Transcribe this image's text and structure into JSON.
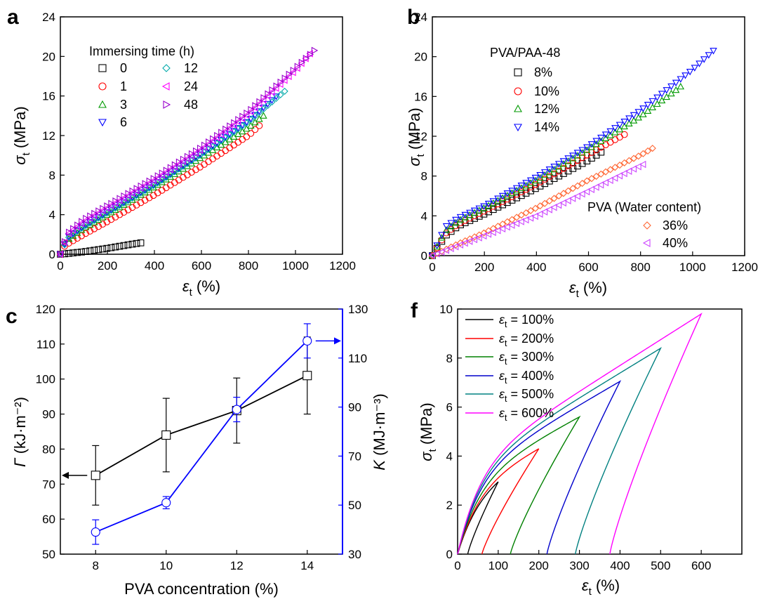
{
  "chart_data": [
    {
      "panel": "a",
      "type": "scatter",
      "xlabel": "ε_t (%)",
      "ylabel": "σ_t (MPa)",
      "xlim": [
        0,
        1200
      ],
      "ylim": [
        0,
        24
      ],
      "xticks": [
        0,
        200,
        400,
        600,
        800,
        1000,
        1200
      ],
      "yticks": [
        0,
        4,
        8,
        12,
        16,
        20,
        24
      ],
      "legend_title": "Immersing time (h)",
      "series": [
        {
          "name": "0",
          "marker": "square",
          "color": "#000000",
          "x_end": 355,
          "points": [
            [
              0,
              0
            ],
            [
              100,
              0.25
            ],
            [
              200,
              0.6
            ],
            [
              300,
              1.0
            ],
            [
              355,
              1.2
            ]
          ]
        },
        {
          "name": "1",
          "marker": "circle",
          "color": "#ff0000",
          "x_end": 860,
          "points": [
            [
              0,
              0
            ],
            [
              20,
              0.9
            ],
            [
              100,
              2.0
            ],
            [
              200,
              3.3
            ],
            [
              400,
              6.0
            ],
            [
              600,
              8.9
            ],
            [
              800,
              12.0
            ],
            [
              860,
              13.3
            ]
          ]
        },
        {
          "name": "3",
          "marker": "triangle-up",
          "color": "#009900",
          "x_end": 880,
          "points": [
            [
              0,
              0
            ],
            [
              20,
              1.3
            ],
            [
              100,
              2.6
            ],
            [
              200,
              4.0
            ],
            [
              400,
              6.8
            ],
            [
              600,
              9.8
            ],
            [
              800,
              12.8
            ],
            [
              880,
              14.3
            ]
          ]
        },
        {
          "name": "6",
          "marker": "triangle-down",
          "color": "#0000ff",
          "x_end": 920,
          "points": [
            [
              0,
              0
            ],
            [
              30,
              1.7
            ],
            [
              100,
              2.9
            ],
            [
              200,
              4.3
            ],
            [
              400,
              7.1
            ],
            [
              600,
              10.2
            ],
            [
              800,
              13.5
            ],
            [
              920,
              16.0
            ]
          ]
        },
        {
          "name": "12",
          "marker": "diamond",
          "color": "#00aaaa",
          "x_end": 960,
          "points": [
            [
              0,
              0
            ],
            [
              30,
              1.6
            ],
            [
              100,
              2.8
            ],
            [
              200,
              4.2
            ],
            [
              400,
              7.0
            ],
            [
              600,
              10.1
            ],
            [
              800,
              13.4
            ],
            [
              960,
              16.6
            ]
          ]
        },
        {
          "name": "24",
          "marker": "triangle-left",
          "color": "#ff00ff",
          "x_end": 1070,
          "points": [
            [
              0,
              0
            ],
            [
              30,
              2.0
            ],
            [
              100,
              3.3
            ],
            [
              200,
              4.7
            ],
            [
              400,
              7.5
            ],
            [
              600,
              10.6
            ],
            [
              800,
              14.2
            ],
            [
              1000,
              18.6
            ],
            [
              1070,
              20.5
            ]
          ]
        },
        {
          "name": "48",
          "marker": "triangle-right",
          "color": "#9900cc",
          "x_end": 1080,
          "points": [
            [
              0,
              0
            ],
            [
              30,
              2.1
            ],
            [
              100,
              3.5
            ],
            [
              200,
              4.9
            ],
            [
              400,
              7.7
            ],
            [
              600,
              10.8
            ],
            [
              800,
              14.4
            ],
            [
              1000,
              18.8
            ],
            [
              1080,
              20.6
            ]
          ]
        }
      ]
    },
    {
      "panel": "b",
      "type": "scatter",
      "xlabel": "ε_t (%)",
      "ylabel": "σ_t (MPa)",
      "xlim": [
        0,
        1200
      ],
      "ylim": [
        0,
        24
      ],
      "xticks": [
        0,
        200,
        400,
        600,
        800,
        1000,
        1200
      ],
      "yticks": [
        0,
        4,
        8,
        12,
        16,
        20,
        24
      ],
      "legend_title": "PVA/PAA-48",
      "legend_title_2": "PVA (Water content)",
      "series": [
        {
          "name": "8%",
          "marker": "square",
          "color": "#000000",
          "x_end": 660,
          "points": [
            [
              0,
              0
            ],
            [
              50,
              2.0
            ],
            [
              100,
              3.0
            ],
            [
              200,
              4.2
            ],
            [
              400,
              6.8
            ],
            [
              600,
              9.6
            ],
            [
              660,
              10.6
            ]
          ]
        },
        {
          "name": "10%",
          "marker": "circle",
          "color": "#ff0000",
          "x_end": 740,
          "points": [
            [
              0,
              0
            ],
            [
              50,
              2.2
            ],
            [
              100,
              3.2
            ],
            [
              200,
              4.5
            ],
            [
              400,
              7.2
            ],
            [
              600,
              10.2
            ],
            [
              740,
              12.2
            ]
          ]
        },
        {
          "name": "12%",
          "marker": "triangle-up",
          "color": "#009900",
          "x_end": 970,
          "points": [
            [
              0,
              0
            ],
            [
              50,
              2.5
            ],
            [
              100,
              3.5
            ],
            [
              200,
              4.8
            ],
            [
              400,
              7.6
            ],
            [
              600,
              10.7
            ],
            [
              800,
              14.0
            ],
            [
              970,
              17.3
            ]
          ]
        },
        {
          "name": "14%",
          "marker": "triangle-down",
          "color": "#0000ff",
          "x_end": 1080,
          "points": [
            [
              0,
              0
            ],
            [
              50,
              2.9
            ],
            [
              100,
              3.8
            ],
            [
              200,
              5.0
            ],
            [
              400,
              7.9
            ],
            [
              600,
              11.0
            ],
            [
              800,
              14.6
            ],
            [
              1000,
              18.7
            ],
            [
              1080,
              20.6
            ]
          ]
        },
        {
          "name": "36%",
          "marker": "diamond",
          "color": "#ff6633",
          "x_end": 860,
          "points": [
            [
              0,
              0
            ],
            [
              100,
              1.2
            ],
            [
              200,
              2.3
            ],
            [
              400,
              4.8
            ],
            [
              600,
              7.6
            ],
            [
              800,
              10.1
            ],
            [
              860,
              11.0
            ]
          ]
        },
        {
          "name": "40%",
          "marker": "triangle-left",
          "color": "#cc44ff",
          "x_end": 820,
          "points": [
            [
              0,
              0
            ],
            [
              100,
              1.0
            ],
            [
              200,
              2.0
            ],
            [
              400,
              4.0
            ],
            [
              600,
              6.5
            ],
            [
              820,
              9.3
            ]
          ]
        }
      ]
    },
    {
      "panel": "c",
      "type": "line",
      "xlabel": "PVA concentration  (%)",
      "ylabel": "Γ (kJ·m⁻²)",
      "y2label": "K (MJ·m⁻³)",
      "xlim": [
        7,
        15
      ],
      "ylim": [
        50,
        120
      ],
      "y2lim": [
        30,
        130
      ],
      "xticks": [
        8,
        10,
        12,
        14
      ],
      "yticks": [
        50,
        60,
        70,
        80,
        90,
        100,
        110,
        120
      ],
      "y2ticks": [
        30,
        50,
        70,
        90,
        110,
        130
      ],
      "series": [
        {
          "name": "Γ",
          "axis": "left",
          "marker": "square",
          "color": "#000000",
          "x": [
            8,
            10,
            12,
            14
          ],
          "values": [
            72.5,
            84,
            91,
            101
          ],
          "errors": [
            8.5,
            10.5,
            9.3,
            11
          ]
        },
        {
          "name": "K",
          "axis": "right",
          "marker": "circle",
          "color": "#0000ff",
          "x": [
            8,
            10,
            12,
            14
          ],
          "values": [
            39,
            51,
            89,
            117
          ],
          "errors": [
            5,
            2.5,
            5,
            7
          ]
        }
      ],
      "annotations": [
        {
          "text": "arrow-left",
          "target_axis": "left",
          "series": "Γ"
        },
        {
          "text": "arrow-right",
          "target_axis": "right",
          "series": "K"
        }
      ]
    },
    {
      "panel": "f",
      "type": "line",
      "xlabel": "ε_t (%)",
      "ylabel": "σ_t (MPa)",
      "xlim": [
        0,
        700
      ],
      "ylim": [
        0,
        10
      ],
      "xticks": [
        0,
        100,
        200,
        300,
        400,
        500,
        600
      ],
      "yticks": [
        0,
        2,
        4,
        6,
        8,
        10
      ],
      "series": [
        {
          "name": "ε_t = 100%",
          "color": "#000000",
          "max_strain": 100,
          "peak": 2.95,
          "residual": 25
        },
        {
          "name": "ε_t = 200%",
          "color": "#ff0000",
          "max_strain": 200,
          "peak": 4.3,
          "residual": 60
        },
        {
          "name": "ε_t = 300%",
          "color": "#008000",
          "max_strain": 300,
          "peak": 5.6,
          "residual": 130
        },
        {
          "name": "ε_t = 400%",
          "color": "#0000cc",
          "max_strain": 400,
          "peak": 7.05,
          "residual": 220
        },
        {
          "name": "ε_t = 500%",
          "color": "#008080",
          "max_strain": 500,
          "peak": 8.4,
          "residual": 290
        },
        {
          "name": "ε_t = 600%",
          "color": "#ff00ff",
          "max_strain": 600,
          "peak": 9.8,
          "residual": 375
        }
      ]
    }
  ],
  "panel_labels": {
    "a": "a",
    "b": "b",
    "c": "c",
    "f": "f"
  }
}
